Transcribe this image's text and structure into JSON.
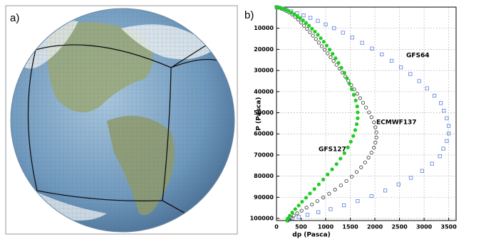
{
  "panel_labels": [
    "a)",
    "b)"
  ],
  "chart_data": {
    "type": "scatter",
    "x_label": "dp (Pasca)",
    "y_label": "P (Pasca)",
    "xlim": [
      0,
      3650
    ],
    "ylim": [
      0,
      101000
    ],
    "y_inverted": true,
    "grid": true,
    "xticks": [
      0,
      500,
      1000,
      1500,
      2000,
      2500,
      3000,
      3500
    ],
    "yticks": [
      10000,
      20000,
      30000,
      40000,
      50000,
      60000,
      70000,
      80000,
      90000,
      100000
    ],
    "series": [
      {
        "name": "GFS64",
        "color": "#5b7fe0",
        "marker": "square",
        "filled": false,
        "x": [
          0,
          60,
          120,
          200,
          300,
          420,
          550,
          690,
          840,
          1000,
          1170,
          1350,
          1540,
          1740,
          1940,
          2140,
          2340,
          2530,
          2720,
          2900,
          3060,
          3210,
          3340,
          3400,
          3460,
          3500,
          3500,
          3460,
          3390,
          3320,
          3160,
          2960,
          2730,
          2480,
          2210,
          1930,
          1650,
          1370,
          1100,
          850,
          630,
          450,
          320,
          230
        ],
        "values": [
          0,
          300,
          700,
          1200,
          2000,
          2900,
          3900,
          5100,
          6500,
          8200,
          10000,
          12100,
          14400,
          16900,
          19600,
          22400,
          25400,
          28500,
          31700,
          35000,
          38400,
          41900,
          45400,
          49000,
          52600,
          56200,
          59800,
          63400,
          67000,
          70600,
          74100,
          77500,
          80800,
          83900,
          86800,
          89400,
          91800,
          93800,
          95600,
          97100,
          98300,
          99300,
          100000,
          100500
        ]
      },
      {
        "name": "ECMWF137",
        "color": "#333333",
        "marker": "circle",
        "filled": false,
        "x": [
          0,
          50,
          100,
          150,
          200,
          260,
          320,
          380,
          440,
          500,
          560,
          620,
          680,
          740,
          800,
          860,
          920,
          980,
          1040,
          1100,
          1160,
          1220,
          1280,
          1340,
          1400,
          1460,
          1520,
          1580,
          1640,
          1700,
          1760,
          1820,
          1880,
          1930,
          1980,
          2010,
          2030,
          2030,
          2010,
          1980,
          1930,
          1870,
          1800,
          1720,
          1630,
          1530,
          1420,
          1310,
          1190,
          1070,
          950,
          830,
          720,
          610,
          510,
          420,
          350,
          290,
          250,
          230
        ],
        "values": [
          0,
          300,
          700,
          1200,
          1800,
          2600,
          3500,
          4600,
          5900,
          7300,
          8800,
          10300,
          11900,
          13500,
          15100,
          16800,
          18500,
          20200,
          21900,
          23700,
          25500,
          27300,
          29100,
          31000,
          32900,
          34900,
          36900,
          38900,
          41000,
          43100,
          45300,
          47500,
          49800,
          52100,
          54500,
          56900,
          59300,
          61700,
          64100,
          66500,
          68900,
          71200,
          73500,
          75800,
          78000,
          80200,
          82300,
          84400,
          86400,
          88300,
          90100,
          91800,
          93400,
          94900,
          96300,
          97600,
          98700,
          99700,
          100500,
          101000
        ]
      },
      {
        "name": "GFS127",
        "color": "#22cc22",
        "marker": "circle",
        "filled": true,
        "x": [
          0,
          60,
          120,
          180,
          240,
          300,
          360,
          420,
          480,
          540,
          600,
          660,
          720,
          780,
          840,
          900,
          960,
          1020,
          1080,
          1140,
          1200,
          1260,
          1320,
          1380,
          1430,
          1480,
          1530,
          1570,
          1610,
          1640,
          1650,
          1650,
          1630,
          1600,
          1560,
          1510,
          1450,
          1380,
          1300,
          1220,
          1130,
          1040,
          950,
          860,
          770,
          680,
          600,
          520,
          450,
          380,
          320,
          270,
          230,
          210
        ],
        "values": [
          0,
          300,
          700,
          1200,
          1800,
          2500,
          3300,
          4200,
          5200,
          6300,
          7500,
          8800,
          10200,
          11600,
          13100,
          14700,
          16400,
          18200,
          20100,
          22100,
          24200,
          26400,
          28700,
          31100,
          33600,
          36200,
          38800,
          41500,
          44200,
          47000,
          49800,
          52600,
          55400,
          58200,
          61000,
          63700,
          66400,
          69100,
          71700,
          74300,
          76800,
          79200,
          81600,
          83900,
          86100,
          88200,
          90200,
          92100,
          93900,
          95600,
          97200,
          98700,
          100000,
          101000
        ]
      }
    ]
  }
}
